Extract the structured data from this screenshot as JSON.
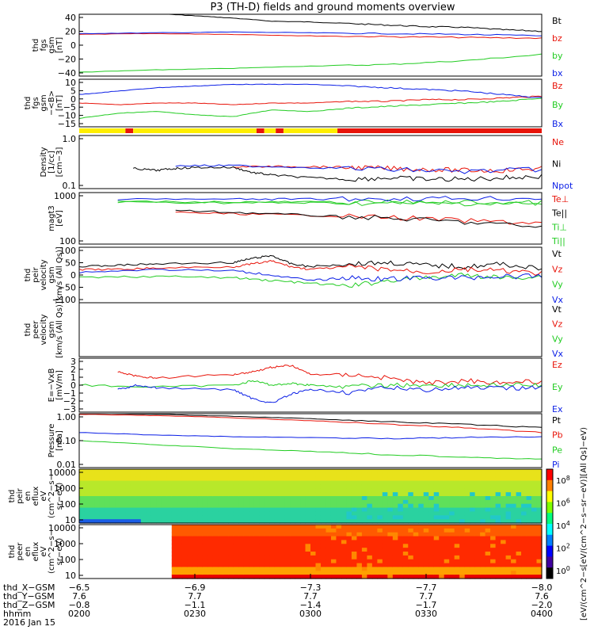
{
  "title": "P3 (TH-D) fields and ground moments overview",
  "colors": {
    "black": "#000000",
    "red": "#e8140a",
    "green": "#22cc22",
    "blue": "#0a1ee6",
    "yellow": "#ffee00"
  },
  "chart_data": [
    {
      "type": "line",
      "id": "fgs-gsm",
      "ylabel": [
        "thd",
        "fgs",
        "gsm",
        "[nT]"
      ],
      "ylim": [
        -40,
        40
      ],
      "yticks": [
        "40",
        "20",
        "0",
        "−20",
        "−40"
      ],
      "legend": [
        "Bt",
        "bz",
        "by",
        "bx"
      ],
      "legend_colors": [
        "black",
        "red",
        "green",
        "blue"
      ],
      "series": [
        {
          "name": "Bt",
          "color": "black",
          "x": [
            0,
            10,
            20,
            30,
            40,
            50,
            60,
            70,
            80,
            90,
            100,
            110,
            120
          ],
          "y": [
            40,
            41,
            41,
            38,
            35,
            31,
            30,
            28,
            26,
            24,
            23,
            20,
            18
          ]
        },
        {
          "name": "bz",
          "color": "red",
          "x": [
            0,
            20,
            40,
            60,
            80,
            100,
            120
          ],
          "y": [
            14,
            15,
            14,
            12,
            11,
            10,
            9
          ]
        },
        {
          "name": "by",
          "color": "green",
          "x": [
            0,
            20,
            40,
            60,
            80,
            100,
            120
          ],
          "y": [
            -35,
            -32,
            -30,
            -27,
            -25,
            -20,
            -12
          ]
        },
        {
          "name": "bx",
          "color": "blue",
          "x": [
            0,
            20,
            40,
            60,
            80,
            100,
            120
          ],
          "y": [
            15,
            16,
            17,
            16,
            15,
            14,
            12
          ]
        }
      ]
    },
    {
      "type": "line",
      "id": "fgs-gse",
      "ylabel": [
        "thd",
        "fgs",
        "gsm",
        "−<B>",
        "[nT]"
      ],
      "ylim": [
        -18,
        10
      ],
      "yticks": [
        "10",
        "5",
        "0",
        "−5",
        "−10",
        "−15"
      ],
      "legend": [
        "Bz",
        "By",
        "Bx"
      ],
      "legend_colors": [
        "red",
        "green",
        "blue"
      ],
      "series": [
        {
          "name": "Bz",
          "color": "red",
          "x": [
            0,
            10,
            20,
            30,
            40,
            50,
            60,
            70,
            80,
            90,
            100,
            110,
            120
          ],
          "y": [
            -4,
            -5,
            -4,
            -4,
            -5,
            -4,
            -4,
            -3,
            -3,
            -2,
            -2,
            -1,
            0
          ]
        },
        {
          "name": "By",
          "color": "green",
          "x": [
            0,
            10,
            20,
            30,
            40,
            50,
            60,
            70,
            80,
            90,
            100,
            110,
            120
          ],
          "y": [
            -13,
            -10,
            -9,
            -11,
            -12,
            -8,
            -9,
            -7,
            -6,
            -5,
            -4,
            -3,
            -1
          ]
        },
        {
          "name": "Bx",
          "color": "blue",
          "x": [
            0,
            10,
            20,
            30,
            40,
            50,
            60,
            70,
            80,
            90,
            100,
            110,
            120
          ],
          "y": [
            1,
            3,
            5,
            6,
            7,
            7,
            7,
            6,
            5,
            4,
            3,
            1,
            -1
          ]
        }
      ]
    },
    {
      "type": "line",
      "id": "density",
      "ylabel": [
        "Density",
        "[1/cc]",
        "[cm−3]"
      ],
      "ylim": [
        0.1,
        1.0
      ],
      "log": true,
      "yticks": [
        "1.0",
        "0.1"
      ],
      "legend": [
        "Ne",
        "Ni",
        "Npot"
      ],
      "legend_colors": [
        "red",
        "black",
        "blue"
      ],
      "series": [
        {
          "name": "Ne",
          "color": "red",
          "x": [
            40,
            50,
            60,
            70,
            80,
            90,
            100,
            110,
            120
          ],
          "y": [
            0.26,
            0.26,
            0.26,
            0.25,
            0.24,
            0.23,
            0.22,
            0.22,
            0.24
          ]
        },
        {
          "name": "Ni",
          "color": "black",
          "x": [
            14,
            20,
            25,
            30,
            40,
            45,
            50,
            60,
            70,
            80,
            90,
            100,
            110,
            120
          ],
          "y": [
            0.24,
            0.22,
            0.24,
            0.25,
            0.25,
            0.2,
            0.18,
            0.16,
            0.15,
            0.16,
            0.15,
            0.15,
            0.16,
            0.17
          ]
        },
        {
          "name": "Npot",
          "color": "blue",
          "x": [
            25,
            40,
            60,
            80,
            100,
            120
          ],
          "y": [
            0.27,
            0.27,
            0.25,
            0.23,
            0.21,
            0.23
          ]
        }
      ]
    },
    {
      "type": "line",
      "id": "temperature",
      "ylabel": [
        "magt3",
        "[eV]"
      ],
      "ylim": [
        100,
        10000
      ],
      "log": true,
      "yticks": [
        "1000",
        "100"
      ],
      "legend": [
        "Te⊥",
        "Te||",
        "Ti⊥",
        "Ti||"
      ],
      "legend_colors": [
        "red",
        "black",
        "green",
        "green"
      ],
      "series": [
        {
          "name": "Te⊥",
          "color": "red",
          "x": [
            25,
            40,
            60,
            80,
            100,
            120
          ],
          "y": [
            1700,
            1500,
            1300,
            1100,
            800,
            650
          ]
        },
        {
          "name": "Te||",
          "color": "black",
          "x": [
            25,
            40,
            60,
            80,
            100,
            120
          ],
          "y": [
            2000,
            1700,
            1300,
            1000,
            700,
            450
          ]
        },
        {
          "name": "Ti⊥",
          "color": "green",
          "x": [
            10,
            40,
            60,
            80,
            100,
            120
          ],
          "y": [
            4300,
            4000,
            4000,
            3800,
            3800,
            3600
          ]
        },
        {
          "name": "Ti||",
          "color": "green",
          "x": [
            10,
            40,
            60,
            80,
            100,
            120
          ],
          "y": [
            4500,
            4300,
            4300,
            4200,
            4200,
            4000
          ]
        },
        {
          "name": "Ti",
          "color": "blue",
          "x": [
            10,
            40,
            60,
            80,
            100,
            120
          ],
          "y": [
            5500,
            5500,
            5600,
            5800,
            6000,
            6000
          ]
        }
      ]
    },
    {
      "type": "line",
      "id": "peir-velocity",
      "ylabel": [
        "thd",
        "peir",
        "velocity",
        "gsm",
        "[km/s (All Qs)]"
      ],
      "ylim": [
        -100,
        100
      ],
      "yticks": [
        "100",
        "50",
        "0",
        "−50",
        "−100"
      ],
      "legend": [
        "Vt",
        "Vz",
        "Vy",
        "Vx"
      ],
      "legend_colors": [
        "black",
        "red",
        "green",
        "blue"
      ],
      "series": [
        {
          "name": "Vt",
          "color": "black",
          "x": [
            0,
            10,
            20,
            40,
            45,
            50,
            55,
            60,
            70,
            80,
            90,
            100,
            110,
            120
          ],
          "y": [
            30,
            35,
            40,
            45,
            60,
            70,
            40,
            30,
            40,
            45,
            35,
            30,
            40,
            20
          ]
        },
        {
          "name": "Vz",
          "color": "red",
          "x": [
            0,
            10,
            20,
            40,
            45,
            50,
            55,
            60,
            70,
            80,
            90,
            100,
            110,
            120
          ],
          "y": [
            20,
            20,
            25,
            30,
            40,
            50,
            30,
            20,
            30,
            20,
            10,
            20,
            15,
            5
          ]
        },
        {
          "name": "Vy",
          "color": "green",
          "x": [
            0,
            20,
            40,
            50,
            60,
            70,
            80,
            90,
            100,
            110,
            120
          ],
          "y": [
            -10,
            -5,
            -10,
            -20,
            -30,
            -40,
            -20,
            -10,
            0,
            -10,
            -5
          ]
        },
        {
          "name": "Vx",
          "color": "blue",
          "x": [
            0,
            20,
            40,
            50,
            60,
            70,
            80,
            90,
            100,
            110,
            120
          ],
          "y": [
            10,
            20,
            15,
            0,
            -20,
            -10,
            -15,
            -10,
            -10,
            -5,
            -5
          ]
        }
      ]
    },
    {
      "type": "line",
      "id": "peer-velocity",
      "ylabel": [
        "thd",
        "peer",
        "velocity",
        "gsm",
        "[km/s (All Qs)]"
      ],
      "ylim": [
        -100,
        100
      ],
      "yticks": [],
      "legend": [
        "Vt",
        "Vz",
        "Vy",
        "Vx"
      ],
      "legend_colors": [
        "black",
        "red",
        "green",
        "blue"
      ],
      "series": []
    },
    {
      "type": "line",
      "id": "efield",
      "ylabel": [
        "E=−VxB",
        "[mV/m]"
      ],
      "ylim": [
        -3,
        3
      ],
      "yticks": [
        "3",
        "2",
        "1",
        "0",
        "−1",
        "−2",
        "−3"
      ],
      "legend": [
        "Ez",
        "Ey",
        "Ex"
      ],
      "legend_colors": [
        "red",
        "green",
        "blue"
      ],
      "series": [
        {
          "name": "Ez",
          "color": "red",
          "x": [
            10,
            15,
            20,
            40,
            45,
            50,
            55,
            60,
            70,
            80,
            90,
            100,
            110,
            120
          ],
          "y": [
            1.5,
            1,
            0.8,
            1.2,
            1.5,
            2,
            2.2,
            1.2,
            1.2,
            0.8,
            0.2,
            0.5,
            0.3,
            0.4
          ]
        },
        {
          "name": "Ey",
          "color": "green",
          "x": [
            0,
            20,
            40,
            45,
            50,
            55,
            60,
            70,
            80,
            90,
            100,
            110,
            120
          ],
          "y": [
            0,
            -0.2,
            0,
            0.5,
            0,
            0.2,
            0,
            -0.2,
            0,
            0,
            0,
            0,
            0
          ]
        },
        {
          "name": "Ex",
          "color": "blue",
          "x": [
            10,
            15,
            20,
            40,
            45,
            50,
            55,
            60,
            70,
            80,
            90,
            100,
            110,
            120
          ],
          "y": [
            -0.5,
            0,
            -0.3,
            -0.5,
            -1.5,
            -2,
            -1,
            -0.5,
            -0.8,
            -0.3,
            -0.5,
            -0.3,
            -0.4,
            -0.2
          ]
        }
      ]
    },
    {
      "type": "line",
      "id": "pressure",
      "ylabel": [
        "Pressure",
        "[nPa]"
      ],
      "ylim": [
        0.01,
        1.0
      ],
      "log": true,
      "yticks": [
        "1.00",
        "0.10",
        "0.01"
      ],
      "legend": [
        "Pt",
        "Pb",
        "Pe",
        "Pi"
      ],
      "legend_colors": [
        "black",
        "red",
        "green",
        "blue"
      ],
      "series": [
        {
          "name": "Pt",
          "color": "black",
          "x": [
            0,
            20,
            40,
            60,
            80,
            100,
            120
          ],
          "y": [
            1.05,
            0.95,
            0.8,
            0.65,
            0.5,
            0.4,
            0.3
          ]
        },
        {
          "name": "Pb",
          "color": "red",
          "x": [
            0,
            20,
            40,
            60,
            80,
            100,
            120
          ],
          "y": [
            0.95,
            0.85,
            0.7,
            0.55,
            0.4,
            0.3,
            0.2
          ]
        },
        {
          "name": "Pe",
          "color": "green",
          "x": [
            0,
            20,
            40,
            60,
            80,
            100,
            120
          ],
          "y": [
            0.1,
            0.07,
            0.05,
            0.04,
            0.03,
            0.025,
            0.02
          ]
        },
        {
          "name": "Pi",
          "color": "blue",
          "x": [
            0,
            20,
            40,
            60,
            80,
            100,
            120
          ],
          "y": [
            0.2,
            0.16,
            0.14,
            0.13,
            0.12,
            0.13,
            0.14
          ]
        }
      ]
    },
    {
      "type": "heatmap",
      "id": "peir-eflux",
      "ylabel": [
        "thd",
        "peir",
        "en",
        "eflux",
        "eV",
        "(cm^2−s−",
        "sr−eV)"
      ],
      "ylim": [
        10,
        20000
      ],
      "log": true,
      "yticks": [
        "10000",
        "1000",
        "100",
        "10"
      ]
    },
    {
      "type": "heatmap",
      "id": "peer-eflux",
      "ylabel": [
        "thd",
        "peer",
        "en",
        "eflux",
        "eV",
        "(cm^2−s−",
        "sr−eV)"
      ],
      "ylim": [
        10,
        20000
      ],
      "log": true,
      "yticks": [
        "10000",
        "1000",
        "100",
        "10"
      ]
    }
  ],
  "colorbar": {
    "label": "[eV/(cm^2−s[eV/(cm^2−s−sr−eV)][All Qs]−eV)",
    "ticks": [
      "10^8",
      "10^6",
      "10^4",
      "10^2",
      "10^0"
    ]
  },
  "quality_bar": {
    "segments": [
      {
        "from": 0,
        "to": 12,
        "color": "yellow"
      },
      {
        "from": 12,
        "to": 14,
        "color": "red"
      },
      {
        "from": 14,
        "to": 46,
        "color": "yellow"
      },
      {
        "from": 46,
        "to": 48,
        "color": "red"
      },
      {
        "from": 48,
        "to": 51,
        "color": "yellow"
      },
      {
        "from": 51,
        "to": 53,
        "color": "red"
      },
      {
        "from": 53,
        "to": 67,
        "color": "yellow"
      },
      {
        "from": 67,
        "to": 120,
        "color": "red"
      }
    ]
  },
  "x_axis": {
    "row_labels": [
      "thd_X−GSM",
      "thd_Y−GSM",
      "thd_Z−GSM",
      "hhmm",
      "2016 Jan 15"
    ],
    "ticks": [
      {
        "values": [
          "−6.5",
          "7.6",
          "−0.8",
          "0200"
        ]
      },
      {
        "values": [
          "−6.9",
          "7.7",
          "−1.1",
          "0230"
        ]
      },
      {
        "values": [
          "−7.3",
          "7.7",
          "−1.4",
          "0300"
        ]
      },
      {
        "values": [
          "−7.7",
          "7.7",
          "−1.7",
          "0330"
        ]
      },
      {
        "values": [
          "−8.0",
          "7.6",
          "−2.0",
          "0400"
        ]
      }
    ]
  }
}
